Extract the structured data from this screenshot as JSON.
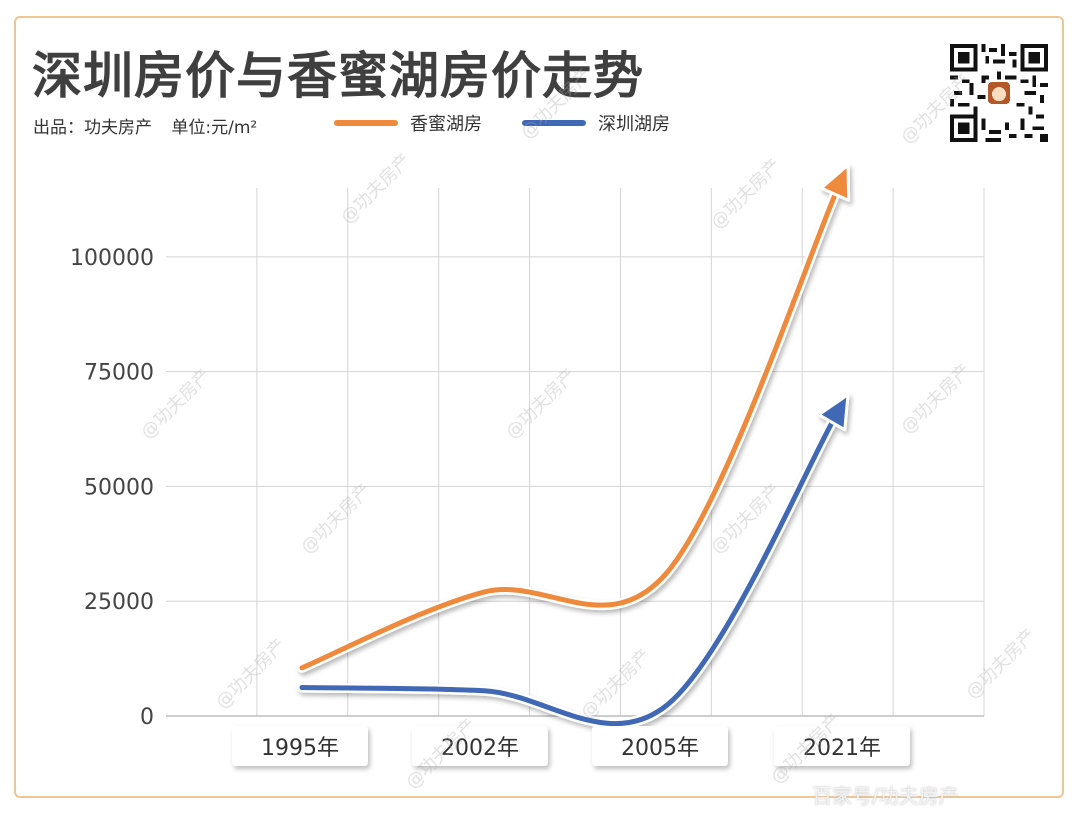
{
  "title": "深圳房价与香蜜湖房价走势",
  "source_label": "出品：功夫房产",
  "unit_label": "单位:元/m²",
  "watermark_text": "@功夫房产",
  "footer_text": "百家号/功夫房产",
  "colors": {
    "orange": "#ef8a3c",
    "blue": "#3f68b5",
    "grid": "#d4d4d4",
    "border": "#f0c690"
  },
  "chart_data": {
    "type": "line",
    "categories": [
      "1995年",
      "2002年",
      "2005年",
      "2021年"
    ],
    "ylim": [
      0,
      115000
    ],
    "yticks": [
      0,
      25000,
      50000,
      75000,
      100000
    ],
    "xlabel": "",
    "ylabel": "",
    "legend": "top",
    "grid": true,
    "series": [
      {
        "name": "香蜜湖房",
        "color": "#ef8a3c",
        "values": [
          10500,
          27000,
          31000,
          120000
        ]
      },
      {
        "name": "深圳湖房",
        "color": "#3f68b5",
        "values": [
          6200,
          5500,
          2200,
          70000
        ]
      }
    ]
  }
}
